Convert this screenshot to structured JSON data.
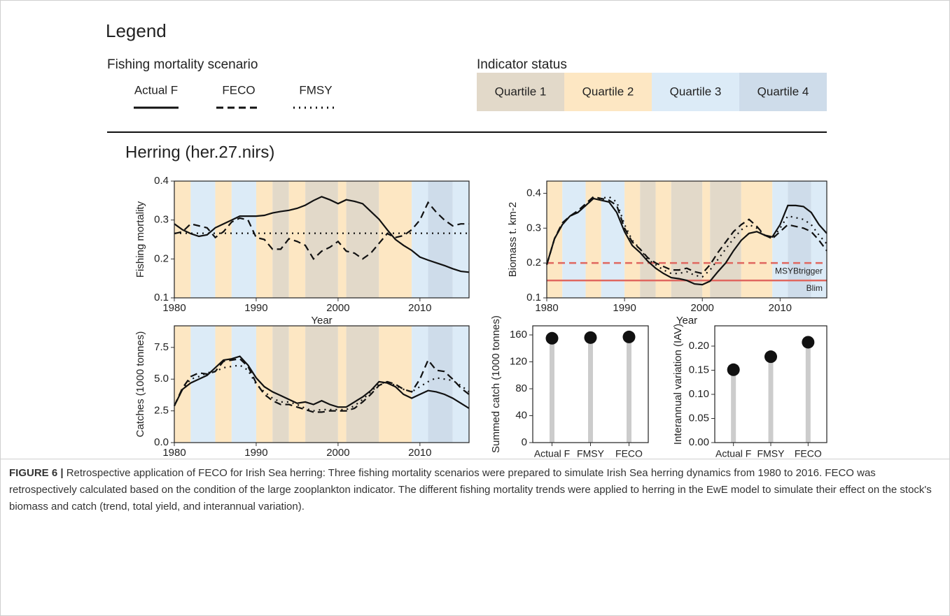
{
  "legend": {
    "title": "Legend",
    "scenario_title": "Fishing mortality scenario",
    "status_title": "Indicator status",
    "quartiles": [
      {
        "label": "Quartile 1",
        "color": "#e2d9c9"
      },
      {
        "label": "Quartile 2",
        "color": "#fde7c3"
      },
      {
        "label": "Quartile 3",
        "color": "#dcebf7"
      },
      {
        "label": "Quartile 4",
        "color": "#cedcea"
      }
    ]
  },
  "section_title": "Herring (her.27.nirs)",
  "status_bands": [
    {
      "start": 1980,
      "end": 1982,
      "quartile": 2
    },
    {
      "start": 1982,
      "end": 1985,
      "quartile": 3
    },
    {
      "start": 1985,
      "end": 1987,
      "quartile": 2
    },
    {
      "start": 1987,
      "end": 1990,
      "quartile": 3
    },
    {
      "start": 1990,
      "end": 1992,
      "quartile": 2
    },
    {
      "start": 1992,
      "end": 1994,
      "quartile": 1
    },
    {
      "start": 1994,
      "end": 1996,
      "quartile": 2
    },
    {
      "start": 1996,
      "end": 2000,
      "quartile": 1
    },
    {
      "start": 2000,
      "end": 2001,
      "quartile": 2
    },
    {
      "start": 2001,
      "end": 2005,
      "quartile": 1
    },
    {
      "start": 2005,
      "end": 2009,
      "quartile": 2
    },
    {
      "start": 2009,
      "end": 2011,
      "quartile": 3
    },
    {
      "start": 2011,
      "end": 2014,
      "quartile": 4
    },
    {
      "start": 2014,
      "end": 2016,
      "quartile": 3
    }
  ],
  "chart_data": [
    {
      "type": "line",
      "x_label": "Year",
      "y_label": "Fishing mortality",
      "shading": true,
      "x": [
        1980,
        1981,
        1982,
        1983,
        1984,
        1985,
        1986,
        1987,
        1988,
        1989,
        1990,
        1991,
        1992,
        1993,
        1994,
        1995,
        1996,
        1997,
        1998,
        1999,
        2000,
        2001,
        2002,
        2003,
        2004,
        2005,
        2006,
        2007,
        2008,
        2009,
        2010,
        2011,
        2012,
        2013,
        2014,
        2015,
        2016
      ],
      "xlim": [
        1980,
        2016
      ],
      "xticks": [
        1980,
        1990,
        2000,
        2010
      ],
      "ylim": [
        0.1,
        0.4
      ],
      "yticks": [
        0.1,
        0.2,
        0.3,
        0.4
      ],
      "series": [
        {
          "name": "Actual F",
          "color": "#111111",
          "style": "solid",
          "values": [
            0.29,
            0.275,
            0.265,
            0.258,
            0.262,
            0.28,
            0.29,
            0.3,
            0.31,
            0.31,
            0.31,
            0.312,
            0.318,
            0.322,
            0.325,
            0.33,
            0.338,
            0.35,
            0.36,
            0.352,
            0.342,
            0.352,
            0.348,
            0.342,
            0.322,
            0.302,
            0.275,
            0.25,
            0.235,
            0.222,
            0.205,
            0.197,
            0.19,
            0.183,
            0.175,
            0.168,
            0.166
          ]
        },
        {
          "name": "FECO",
          "color": "#111111",
          "style": "dashed",
          "values": [
            0.265,
            0.27,
            0.29,
            0.285,
            0.28,
            0.255,
            0.27,
            0.295,
            0.305,
            0.3,
            0.255,
            0.25,
            0.225,
            0.225,
            0.252,
            0.245,
            0.235,
            0.2,
            0.22,
            0.23,
            0.245,
            0.22,
            0.215,
            0.2,
            0.215,
            0.24,
            0.265,
            0.255,
            0.26,
            0.275,
            0.3,
            0.345,
            0.32,
            0.3,
            0.285,
            0.29,
            0.29
          ]
        },
        {
          "name": "FMSY",
          "color": "#111111",
          "style": "dotted",
          "values": [
            0.266,
            0.266,
            0.266,
            0.266,
            0.266,
            0.266,
            0.266,
            0.266,
            0.266,
            0.266,
            0.266,
            0.266,
            0.266,
            0.266,
            0.266,
            0.266,
            0.266,
            0.266,
            0.266,
            0.266,
            0.266,
            0.266,
            0.266,
            0.266,
            0.266,
            0.266,
            0.266,
            0.266,
            0.266,
            0.266,
            0.266,
            0.266,
            0.266,
            0.266,
            0.266,
            0.266,
            0.266
          ]
        }
      ]
    },
    {
      "type": "line",
      "x_label": "Year",
      "y_label": "Biomass t. km-2",
      "shading": true,
      "x": [
        1980,
        1981,
        1982,
        1983,
        1984,
        1985,
        1986,
        1987,
        1988,
        1989,
        1990,
        1991,
        1992,
        1993,
        1994,
        1995,
        1996,
        1997,
        1998,
        1999,
        2000,
        2001,
        2002,
        2003,
        2004,
        2005,
        2006,
        2007,
        2008,
        2009,
        2010,
        2011,
        2012,
        2013,
        2014,
        2015,
        2016
      ],
      "xlim": [
        1980,
        2016
      ],
      "xticks": [
        1980,
        1990,
        2000,
        2010
      ],
      "ylim": [
        0.1,
        0.435
      ],
      "yticks": [
        0.1,
        0.2,
        0.3,
        0.4
      ],
      "ref_lines": [
        {
          "value": 0.2,
          "label": "MSYBtrigger",
          "color": "#e0675f",
          "style": "dashed"
        },
        {
          "value": 0.15,
          "label": "Blim",
          "color": "#e0675f",
          "style": "solid"
        }
      ],
      "series": [
        {
          "name": "Actual F",
          "color": "#111111",
          "style": "solid",
          "values": [
            0.195,
            0.27,
            0.31,
            0.335,
            0.345,
            0.365,
            0.385,
            0.38,
            0.375,
            0.345,
            0.29,
            0.25,
            0.23,
            0.205,
            0.185,
            0.17,
            0.158,
            0.155,
            0.15,
            0.14,
            0.138,
            0.148,
            0.175,
            0.2,
            0.235,
            0.265,
            0.285,
            0.29,
            0.28,
            0.275,
            0.31,
            0.365,
            0.365,
            0.362,
            0.345,
            0.31,
            0.285
          ]
        },
        {
          "name": "FECO",
          "color": "#111111",
          "style": "dashed",
          "values": [
            0.195,
            0.27,
            0.315,
            0.335,
            0.35,
            0.37,
            0.39,
            0.385,
            0.38,
            0.365,
            0.3,
            0.26,
            0.24,
            0.215,
            0.2,
            0.19,
            0.18,
            0.18,
            0.185,
            0.175,
            0.17,
            0.195,
            0.23,
            0.26,
            0.29,
            0.31,
            0.325,
            0.305,
            0.28,
            0.27,
            0.29,
            0.31,
            0.305,
            0.3,
            0.29,
            0.265,
            0.235
          ]
        },
        {
          "name": "FMSY",
          "color": "#111111",
          "style": "dotted",
          "values": [
            0.195,
            0.27,
            0.31,
            0.335,
            0.345,
            0.365,
            0.385,
            0.385,
            0.39,
            0.375,
            0.31,
            0.265,
            0.24,
            0.21,
            0.195,
            0.18,
            0.17,
            0.17,
            0.175,
            0.165,
            0.16,
            0.18,
            0.21,
            0.24,
            0.27,
            0.295,
            0.31,
            0.3,
            0.28,
            0.27,
            0.3,
            0.335,
            0.33,
            0.325,
            0.31,
            0.28,
            0.255
          ]
        }
      ]
    },
    {
      "type": "line",
      "x_label": "Year",
      "y_label": "Catches (1000 tonnes)",
      "shading": true,
      "x": [
        1980,
        1981,
        1982,
        1983,
        1984,
        1985,
        1986,
        1987,
        1988,
        1989,
        1990,
        1991,
        1992,
        1993,
        1994,
        1995,
        1996,
        1997,
        1998,
        1999,
        2000,
        2001,
        2002,
        2003,
        2004,
        2005,
        2006,
        2007,
        2008,
        2009,
        2010,
        2011,
        2012,
        2013,
        2014,
        2015,
        2016
      ],
      "xlim": [
        1980,
        2016
      ],
      "xticks": [
        1980,
        1990,
        2000,
        2010
      ],
      "ylim": [
        0,
        9.2
      ],
      "yticks": [
        {
          "value": 0,
          "label": "0.0"
        },
        2.5,
        {
          "value": 5,
          "label": "5.0"
        },
        7.5
      ],
      "series": [
        {
          "name": "Actual F",
          "color": "#111111",
          "style": "solid",
          "values": [
            2.9,
            4.2,
            4.7,
            5.0,
            5.3,
            5.9,
            6.5,
            6.6,
            6.8,
            6.1,
            5.1,
            4.4,
            4.0,
            3.7,
            3.4,
            3.1,
            3.2,
            3.0,
            3.3,
            3.0,
            2.8,
            2.8,
            3.2,
            3.6,
            4.1,
            4.8,
            4.7,
            4.4,
            3.8,
            3.5,
            3.8,
            4.1,
            4.0,
            3.8,
            3.5,
            3.1,
            2.7
          ]
        },
        {
          "name": "FECO",
          "color": "#111111",
          "style": "dashed",
          "values": [
            2.9,
            4.3,
            5.2,
            5.5,
            5.4,
            5.6,
            6.4,
            6.5,
            6.6,
            6.0,
            4.7,
            3.8,
            3.3,
            3.0,
            3.0,
            2.8,
            2.6,
            2.4,
            2.4,
            2.5,
            2.5,
            2.5,
            2.7,
            3.2,
            3.8,
            4.5,
            4.8,
            4.6,
            4.2,
            4.0,
            5.0,
            6.5,
            5.7,
            5.6,
            5.0,
            4.3,
            3.8
          ]
        },
        {
          "name": "FMSY",
          "color": "#111111",
          "style": "dotted",
          "values": [
            2.9,
            4.2,
            5.0,
            5.2,
            5.5,
            5.6,
            5.9,
            6.0,
            6.1,
            5.7,
            4.6,
            4.0,
            3.5,
            3.2,
            3.2,
            3.0,
            2.7,
            2.5,
            2.6,
            2.6,
            2.6,
            2.6,
            2.9,
            3.4,
            4.0,
            4.6,
            4.8,
            4.5,
            4.2,
            4.0,
            4.4,
            4.8,
            5.1,
            5.0,
            4.9,
            4.5,
            4.0
          ]
        }
      ]
    },
    {
      "type": "lollipop",
      "y_label": "Summed catch (1000 tonnes)",
      "categories": [
        "Actual F",
        "FMSY",
        "FECO"
      ],
      "values": [
        155,
        156,
        157
      ],
      "ylim": [
        0,
        173.5
      ],
      "yticks": [
        0,
        40,
        80,
        120,
        160
      ],
      "color": "#111111",
      "stem_color": "#cccccc"
    },
    {
      "type": "lollipop",
      "y_label": "Interannual variation (IAV)",
      "categories": [
        "Actual F",
        "FMSY",
        "FECO"
      ],
      "values": [
        0.151,
        0.178,
        0.208
      ],
      "ylim": [
        0,
        0.242
      ],
      "yticks": [
        {
          "value": 0,
          "label": "0.00"
        },
        0.05,
        {
          "value": 0.1,
          "label": "0.10"
        },
        0.15,
        {
          "value": 0.2,
          "label": "0.20"
        }
      ],
      "color": "#111111",
      "stem_color": "#cccccc"
    }
  ],
  "caption": {
    "label": "FIGURE 6 |",
    "text": "Retrospective application of FECO for Irish Sea herring: Three fishing mortality scenarios were prepared to simulate Irish Sea herring dynamics from 1980 to 2016. FECO was retrospectively calculated based on the condition of the large zooplankton indicator. The different fishing mortality trends were applied to herring in the EwE model to simulate their effect on the stock's biomass and catch (trend, total yield, and interannual variation)."
  }
}
